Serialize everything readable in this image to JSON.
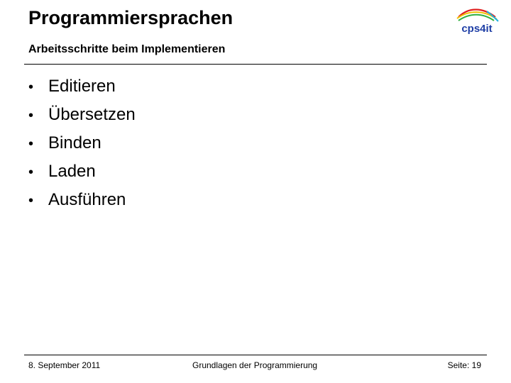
{
  "header": {
    "title": "Programmiersprachen",
    "subtitle": "Arbeitsschritte beim Implementieren",
    "logo_text": "cps4it"
  },
  "bullets": [
    {
      "marker": "•",
      "label": "Editieren"
    },
    {
      "marker": "•",
      "label": "Übersetzen"
    },
    {
      "marker": "•",
      "label": "Binden"
    },
    {
      "marker": "•",
      "label": "Laden"
    },
    {
      "marker": "•",
      "label": "Ausführen"
    }
  ],
  "footer": {
    "date": "8. September 2011",
    "course": "Grundlagen der Programmierung",
    "page": "Seite: 19"
  },
  "colors": {
    "logo_text": "#1f3fa6",
    "logo_arc_red": "#e02020",
    "logo_arc_yellow": "#f0c000",
    "logo_arc_green": "#30b040",
    "logo_arc_cyan": "#20b0e0"
  }
}
